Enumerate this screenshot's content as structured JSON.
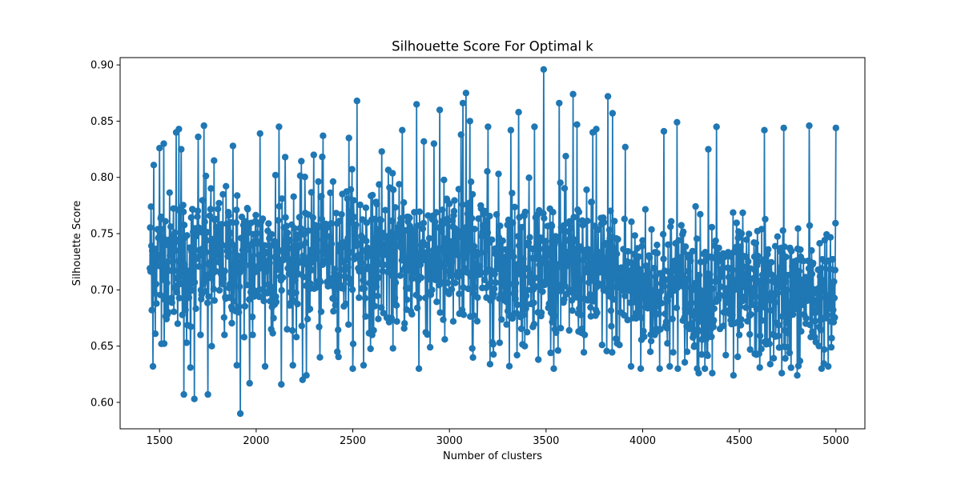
{
  "chart_data": {
    "type": "line",
    "title": "Silhouette Score For Optimal k",
    "xlabel": "Number of clusters",
    "ylabel": "Silhouette Score",
    "xlim": [
      1296,
      5150
    ],
    "ylim": [
      0.5765,
      0.9065
    ],
    "xticks": [
      1500,
      2000,
      2500,
      3000,
      3500,
      4000,
      4500,
      5000
    ],
    "xtick_labels": [
      "1500",
      "2000",
      "2500",
      "3000",
      "3500",
      "4000",
      "4500",
      "5000"
    ],
    "yticks": [
      0.6,
      0.65,
      0.7,
      0.75,
      0.8,
      0.85,
      0.9
    ],
    "ytick_labels": [
      "0.60",
      "0.65",
      "0.70",
      "0.75",
      "0.80",
      "0.85",
      "0.90"
    ],
    "grid": false,
    "marker": "circle",
    "color": "#1f77b4",
    "series": [
      {
        "x_start": 1450,
        "x_end": 5000,
        "x_step": 2,
        "trend": [
          [
            1450,
            0.728
          ],
          [
            2000,
            0.727
          ],
          [
            2500,
            0.733
          ],
          [
            3000,
            0.728
          ],
          [
            3500,
            0.722
          ],
          [
            4000,
            0.705
          ],
          [
            4500,
            0.698
          ],
          [
            5000,
            0.694
          ]
        ],
        "spread": [
          [
            1450,
            0.052
          ],
          [
            2500,
            0.058
          ],
          [
            3000,
            0.06
          ],
          [
            3500,
            0.058
          ],
          [
            4000,
            0.057
          ],
          [
            5000,
            0.052
          ]
        ],
        "extremes": [
          [
            1455,
            0.774
          ],
          [
            1460,
            0.682
          ],
          [
            1466,
            0.632
          ],
          [
            1470,
            0.811
          ],
          [
            1478,
            0.661
          ],
          [
            1500,
            0.826
          ],
          [
            1510,
            0.652
          ],
          [
            1522,
            0.83
          ],
          [
            1540,
            0.678
          ],
          [
            1586,
            0.84
          ],
          [
            1600,
            0.843
          ],
          [
            1612,
            0.825
          ],
          [
            1625,
            0.607
          ],
          [
            1640,
            0.653
          ],
          [
            1660,
            0.631
          ],
          [
            1680,
            0.603
          ],
          [
            1700,
            0.836
          ],
          [
            1712,
            0.66
          ],
          [
            1730,
            0.846
          ],
          [
            1750,
            0.607
          ],
          [
            1770,
            0.65
          ],
          [
            1782,
            0.815
          ],
          [
            1836,
            0.66
          ],
          [
            1880,
            0.828
          ],
          [
            1900,
            0.633
          ],
          [
            1918,
            0.59
          ],
          [
            1965,
            0.617
          ],
          [
            1982,
            0.66
          ],
          [
            2020,
            0.839
          ],
          [
            2045,
            0.632
          ],
          [
            2078,
            0.665
          ],
          [
            2100,
            0.802
          ],
          [
            2118,
            0.845
          ],
          [
            2130,
            0.616
          ],
          [
            2150,
            0.818
          ],
          [
            2190,
            0.633
          ],
          [
            2240,
            0.62
          ],
          [
            2260,
            0.624
          ],
          [
            2298,
            0.82
          ],
          [
            2330,
            0.64
          ],
          [
            2345,
            0.837
          ],
          [
            2400,
            0.681
          ],
          [
            2420,
            0.645
          ],
          [
            2480,
            0.835
          ],
          [
            2502,
            0.652
          ],
          [
            2522,
            0.868
          ],
          [
            2555,
            0.633
          ],
          [
            2600,
            0.66
          ],
          [
            2650,
            0.823
          ],
          [
            2700,
            0.675
          ],
          [
            2755,
            0.842
          ],
          [
            2800,
            0.681
          ],
          [
            2830,
            0.865
          ],
          [
            2842,
            0.63
          ],
          [
            2868,
            0.832
          ],
          [
            2900,
            0.649
          ],
          [
            2950,
            0.86
          ],
          [
            2975,
            0.656
          ],
          [
            3020,
            0.672
          ],
          [
            3060,
            0.838
          ],
          [
            3070,
            0.866
          ],
          [
            3085,
            0.875
          ],
          [
            3105,
            0.85
          ],
          [
            3118,
            0.648
          ],
          [
            3200,
            0.845
          ],
          [
            3210,
            0.634
          ],
          [
            3260,
            0.653
          ],
          [
            3318,
            0.842
          ],
          [
            3350,
            0.642
          ],
          [
            3358,
            0.858
          ],
          [
            3390,
            0.65
          ],
          [
            3440,
            0.845
          ],
          [
            3460,
            0.638
          ],
          [
            3488,
            0.896
          ],
          [
            3545,
            0.665
          ],
          [
            3568,
            0.866
          ],
          [
            3620,
            0.664
          ],
          [
            3640,
            0.874
          ],
          [
            3660,
            0.847
          ],
          [
            3700,
            0.66
          ],
          [
            3742,
            0.84
          ],
          [
            3760,
            0.843
          ],
          [
            3790,
            0.651
          ],
          [
            3820,
            0.872
          ],
          [
            3843,
            0.857
          ],
          [
            3880,
            0.651
          ],
          [
            3910,
            0.827
          ],
          [
            3940,
            0.632
          ],
          [
            3990,
            0.63
          ],
          [
            4040,
            0.645
          ],
          [
            4062,
            0.66
          ],
          [
            4110,
            0.841
          ],
          [
            4140,
            0.632
          ],
          [
            4178,
            0.849
          ],
          [
            4230,
            0.645
          ],
          [
            4290,
            0.626
          ],
          [
            4340,
            0.825
          ],
          [
            4360,
            0.626
          ],
          [
            4382,
            0.845
          ],
          [
            4430,
            0.642
          ],
          [
            4470,
            0.624
          ],
          [
            4500,
            0.66
          ],
          [
            4555,
            0.647
          ],
          [
            4605,
            0.631
          ],
          [
            4630,
            0.842
          ],
          [
            4660,
            0.634
          ],
          [
            4720,
            0.626
          ],
          [
            4730,
            0.844
          ],
          [
            4760,
            0.644
          ],
          [
            4800,
            0.624
          ],
          [
            4862,
            0.846
          ],
          [
            4890,
            0.658
          ],
          [
            4940,
            0.647
          ],
          [
            4960,
            0.632
          ],
          [
            4975,
            0.649
          ],
          [
            5000,
            0.844
          ]
        ]
      }
    ]
  }
}
